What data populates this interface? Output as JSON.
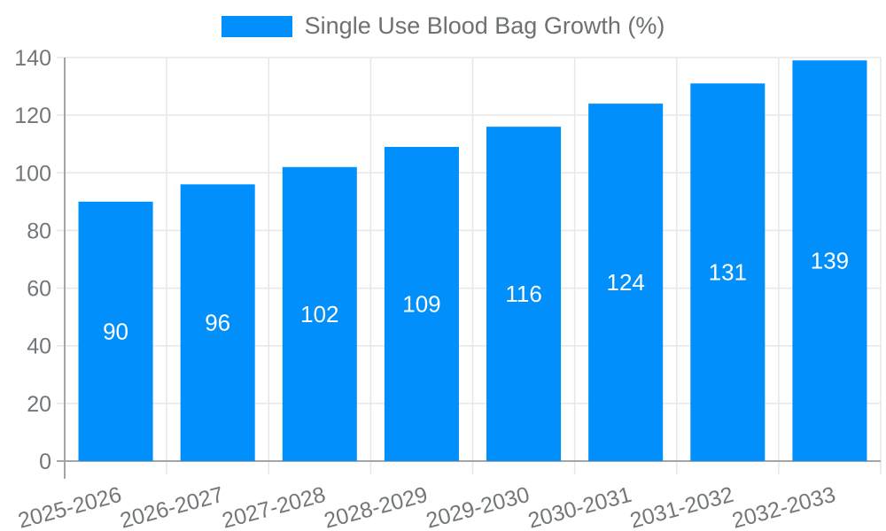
{
  "chart_data": {
    "type": "bar",
    "title": "",
    "legend": {
      "label": "Single Use Blood Bag Growth (%)",
      "position": "top-center"
    },
    "categories": [
      "2025-2026",
      "2026-2027",
      "2027-2028",
      "2028-2029",
      "2029-2030",
      "2030-2031",
      "2031-2032",
      "2032-2033"
    ],
    "values": [
      90,
      96,
      102,
      109,
      116,
      124,
      131,
      139
    ],
    "xlabel": "",
    "ylabel": "",
    "ylim": [
      0,
      140
    ],
    "yticks": [
      0,
      20,
      40,
      60,
      80,
      100,
      120,
      140
    ],
    "grid": true,
    "value_labels": "centered-in-bar",
    "x_tick_label_rotation_deg": -15,
    "colors": {
      "bar": "#008FFB",
      "value_label": "#ffffff",
      "axis_tick_label": "#73777a",
      "legend_text": "#6d7173",
      "gridline": "#e7e7e7",
      "axis_line": "#a3a6a8"
    }
  }
}
